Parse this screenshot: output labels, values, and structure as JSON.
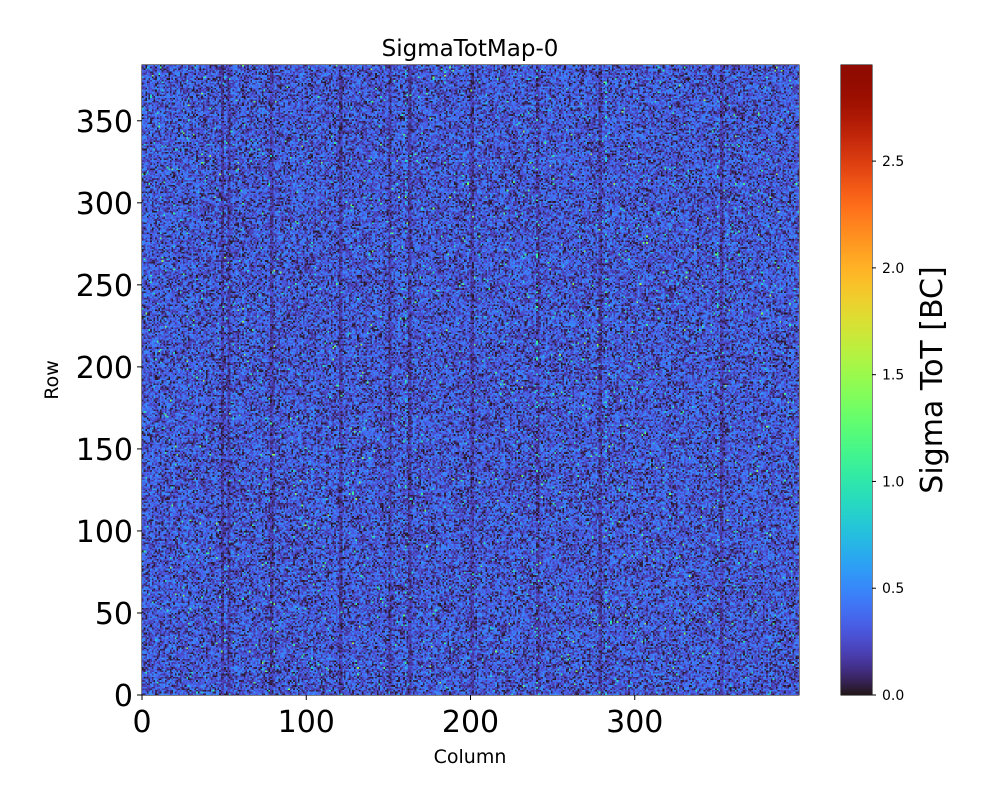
{
  "chart_data": {
    "type": "heatmap",
    "title": "SigmaTotMap-0",
    "xlabel": "Column",
    "ylabel": "Row",
    "xlim": [
      0,
      400
    ],
    "ylim": [
      0,
      384
    ],
    "x_ticks": [
      0,
      100,
      200,
      300
    ],
    "y_ticks": [
      0,
      50,
      100,
      150,
      200,
      250,
      300,
      350
    ],
    "x_tick_labels": [
      "0",
      "100",
      "200",
      "300"
    ],
    "y_tick_labels": [
      "0",
      "50",
      "100",
      "150",
      "200",
      "250",
      "300",
      "350"
    ],
    "colorbar": {
      "label": "Sigma ToT [BC]",
      "range": [
        0.0,
        2.95
      ],
      "ticks": [
        0.0,
        0.5,
        1.0,
        1.5,
        2.0,
        2.5
      ],
      "tick_labels": [
        "0.0",
        "0.5",
        "1.0",
        "1.5",
        "2.0",
        "2.5"
      ],
      "colormap": "turbo"
    },
    "value_distribution": {
      "typical_range": [
        0.0,
        0.6
      ],
      "mean_approx": 0.33,
      "sparse_max_approx": 1.5
    },
    "dark_columns": [
      48,
      52,
      78,
      120,
      150,
      162,
      200,
      240,
      278,
      352
    ],
    "bright_columns": [
      160,
      240,
      282,
      350
    ]
  }
}
